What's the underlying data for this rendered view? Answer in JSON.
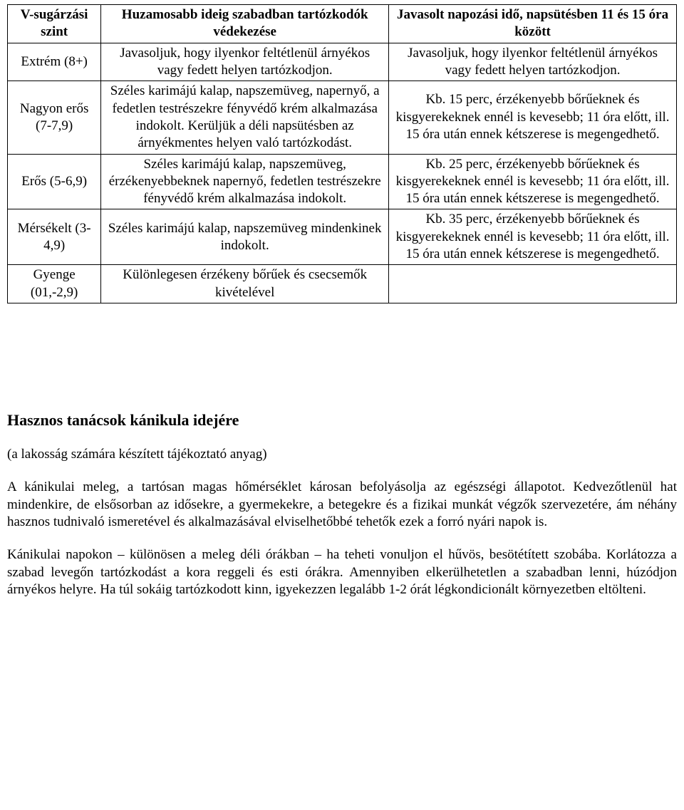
{
  "table": {
    "headers": {
      "col1": "V-sugárzási szint",
      "col2": "Huzamosabb ideig szabadban tartózkodók védekezése",
      "col3": "Javasolt napozási idő, napsütésben 11 és 15 óra között"
    },
    "rows": [
      {
        "level": "Extrém (8+)",
        "protection": "Javasoljuk, hogy ilyenkor feltétlenül árnyékos vagy fedett helyen tartózkodjon.",
        "sun_time": "Javasoljuk, hogy ilyenkor feltétlenül árnyékos vagy fedett helyen tartózkodjon."
      },
      {
        "level": "Nagyon erős (7-7,9)",
        "protection": "Széles karimájú kalap, napszemüveg, napernyő, a fedetlen testrészekre fényvédő krém alkalmazása indokolt. Kerüljük a déli napsütésben az árnyékmentes helyen való tartózkodást.",
        "sun_time": "Kb. 15 perc, érzékenyebb bőrűeknek és kisgyerekeknek ennél is kevesebb; 11 óra előtt, ill. 15 óra után ennek kétszerese is megengedhető."
      },
      {
        "level": "Erős (5-6,9)",
        "protection": "Széles karimájú kalap, napszemüveg, érzékenyebbeknek napernyő, fedetlen testrészekre fényvédő krém alkalmazása indokolt.",
        "sun_time": "Kb. 25 perc, érzékenyebb bőrűeknek és kisgyerekeknek ennél is kevesebb; 11 óra előtt, ill. 15 óra után ennek kétszerese is megengedhető."
      },
      {
        "level": "Mérsékelt (3-4,9)",
        "protection": "Széles karimájú kalap, napszemüveg mindenkinek indokolt.",
        "sun_time": "Kb. 35 perc, érzékenyebb bőrűeknek és kisgyerekeknek ennél is kevesebb; 11 óra előtt, ill. 15 óra után ennek kétszerese is megengedhető."
      },
      {
        "level": "Gyenge (01,-2,9)",
        "protection": "Különlegesen érzékeny bőrűek és csecsemők kivételével",
        "sun_time": ""
      }
    ]
  },
  "article": {
    "heading": "Hasznos tanácsok kánikula idejére",
    "subtitle": "(a lakosság számára készített tájékoztató anyag)",
    "p1": "A kánikulai meleg, a tartósan magas hőmérséklet károsan befolyásolja az egészségi állapotot. Kedvezőtlenül hat mindenkire, de elsősorban az idősekre, a gyermekekre, a betegekre és a fizikai munkát végzők szervezetére, ám néhány hasznos tudnivaló ismeretével és alkalmazásával elviselhetőbbé tehetők ezek a forró nyári napok is.",
    "p2": "Kánikulai napokon – különösen a meleg déli órákban – ha teheti vonuljon el hűvös, besötétített szobába. Korlátozza a szabad levegőn tartózkodást a kora reggeli és esti órákra. Amennyiben elkerülhetetlen a szabadban lenni, húzódjon árnyékos helyre. Ha túl sokáig tartózkodott kinn, igyekezzen legalább 1-2 órát légkondicionált környezetben eltölteni."
  }
}
